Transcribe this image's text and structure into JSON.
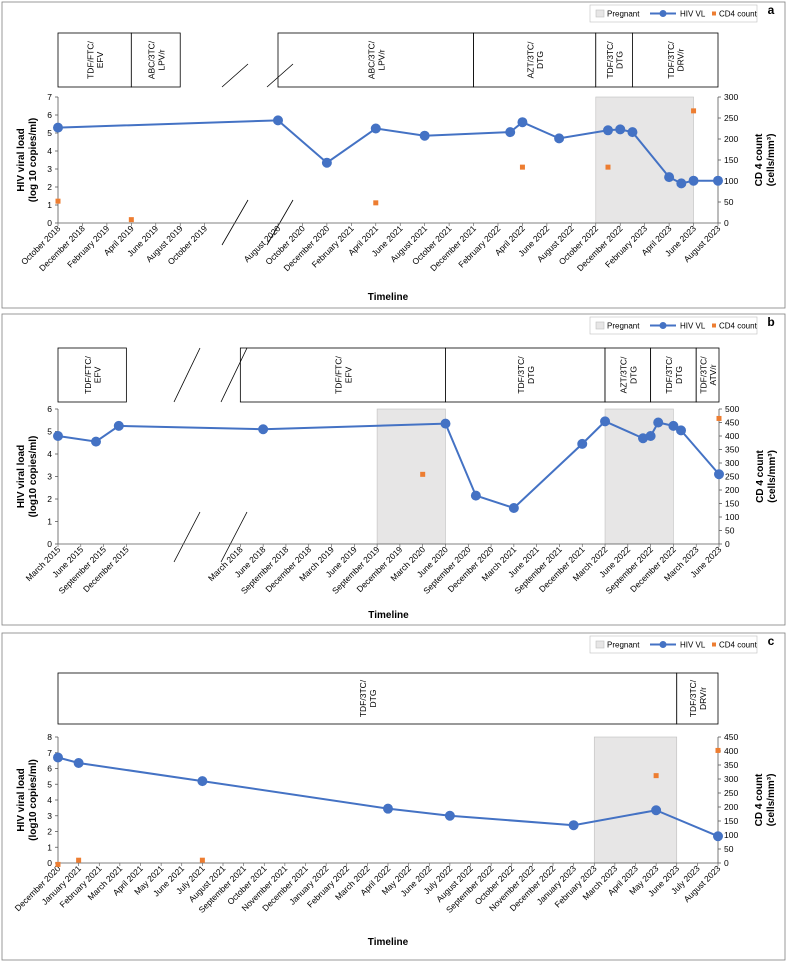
{
  "legend": {
    "pregnant": "Pregnant",
    "vl": "HIV VL",
    "cd4": "CD4 count"
  },
  "colors": {
    "vl": "#4472c4",
    "cd4": "#ed7d31",
    "pregnant_fill": "#e7e6e6",
    "pregnant_stroke": "#bfbfbf"
  },
  "chart_data": [
    {
      "panel": "a",
      "type": "line",
      "xlabel": "Timeline",
      "ylabel_left": [
        "HIV viral load",
        "(log 10 copies/ml)"
      ],
      "ylabel_right": [
        "CD 4 count",
        "(cells/mm³)"
      ],
      "ylim_left": [
        0,
        7
      ],
      "yticks_left": [
        0,
        1,
        2,
        3,
        4,
        5,
        6,
        7
      ],
      "ylim_right": [
        0,
        300
      ],
      "yticks_right": [
        0,
        50,
        100,
        150,
        200,
        250,
        300
      ],
      "x_categories": [
        "October 2018",
        "December 2018",
        "February 2019",
        "April 2019",
        "June 2019",
        "August 2019",
        "October 2019",
        "",
        "",
        "August 2020",
        "October 2020",
        "December 2020",
        "February 2021",
        "April 2021",
        "June 2021",
        "August 2021",
        "October 2021",
        "December 2021",
        "February 2022",
        "April 2022",
        "June 2022",
        "August 2022",
        "October 2022",
        "December 2022",
        "February 2023",
        "April 2023",
        "June 2023",
        "August 2023"
      ],
      "axis_break_after": "October 2019",
      "regimens": [
        {
          "label": [
            "TDF/FTC/",
            "EFV"
          ],
          "from": "October 2018",
          "to": "April 2019"
        },
        {
          "label": [
            "ABC/3TC/",
            "LPV/r"
          ],
          "from": "April 2019",
          "to": "August 2019"
        },
        {
          "label": [
            "ABC/3TC/",
            "LPV/r"
          ],
          "from": "August 2020",
          "to": "December 2021"
        },
        {
          "label": [
            "AZT/3TC/",
            "DTG"
          ],
          "from": "December 2021",
          "to": "October 2022"
        },
        {
          "label": [
            "TDF/3TC/",
            "DTG"
          ],
          "from": "October 2022",
          "to": "January 2023"
        },
        {
          "label": [
            "TDF/3TC/",
            "DRV/r"
          ],
          "from": "January 2023",
          "to": "August 2023"
        }
      ],
      "pregnancy": {
        "from": "October 2022",
        "to": "June 2023"
      },
      "series": [
        {
          "name": "HIV VL",
          "type": "line",
          "points": [
            [
              "October 2018",
              5.3
            ],
            [
              "August 2020",
              5.7
            ],
            [
              "December 2020",
              3.35
            ],
            [
              "April 2021",
              5.25
            ],
            [
              "August 2021",
              4.85
            ],
            [
              "March 2022",
              5.05
            ],
            [
              "April 2022",
              5.6
            ],
            [
              "July 2022",
              4.7
            ],
            [
              "November 2022",
              5.15
            ],
            [
              "December 2022",
              5.2
            ],
            [
              "January 2023",
              5.05
            ],
            [
              "April 2023",
              2.55
            ],
            [
              "May 2023",
              2.2
            ],
            [
              "June 2023",
              2.35
            ],
            [
              "August 2023",
              2.35
            ]
          ]
        },
        {
          "name": "CD4 count",
          "type": "scatter",
          "points": [
            [
              "October 2018",
              52
            ],
            [
              "April 2019",
              8
            ],
            [
              "April 2021",
              48
            ],
            [
              "April 2022",
              133
            ],
            [
              "November 2022",
              133
            ],
            [
              "June 2023",
              267
            ]
          ]
        }
      ]
    },
    {
      "panel": "b",
      "type": "line",
      "xlabel": "Timeline",
      "ylabel_left": [
        "HIV viral load",
        "(log10 copies/ml)"
      ],
      "ylabel_right": [
        "CD 4 count",
        "(cells/mm³)"
      ],
      "ylim_left": [
        0,
        6
      ],
      "yticks_left": [
        0,
        1,
        2,
        3,
        4,
        5,
        6
      ],
      "ylim_right": [
        0,
        500
      ],
      "yticks_right": [
        0,
        50,
        100,
        150,
        200,
        250,
        300,
        350,
        400,
        450,
        500
      ],
      "x_categories": [
        "March 2015",
        "June 2015",
        "September 2015",
        "December 2015",
        "",
        "",
        "",
        "",
        "March 2018",
        "June 2018",
        "September 2018",
        "December 2018",
        "March 2019",
        "June 2019",
        "September 2019",
        "December 2019",
        "March 2020",
        "June 2020",
        "September 2020",
        "December 2020",
        "March 2021",
        "June 2021",
        "September 2021",
        "December 2021",
        "March 2022",
        "June 2022",
        "September 2022",
        "December 2022",
        "March 2023",
        "June 2023"
      ],
      "axis_break_after": "December 2015",
      "regimens": [
        {
          "label": [
            "TDF/FTC/",
            "EFV"
          ],
          "from": "March 2015",
          "to": "December 2015"
        },
        {
          "label": [
            "TDF/FTC/",
            "EFV"
          ],
          "from": "March 2018",
          "to": "June 2020"
        },
        {
          "label": [
            "TDF/3TC/",
            "DTG"
          ],
          "from": "June 2020",
          "to": "March 2022"
        },
        {
          "label": [
            "AZT/3TC/",
            "DTG"
          ],
          "from": "March 2022",
          "to": "September 2022"
        },
        {
          "label": [
            "TDF/3TC/",
            "DTG"
          ],
          "from": "September 2022",
          "to": "March 2023"
        },
        {
          "label": [
            "TDF/3TC/",
            "ATV/r"
          ],
          "from": "March 2023",
          "to": "June 2023"
        }
      ],
      "pregnancy_periods": [
        {
          "from": "September 2019",
          "to": "June 2020"
        },
        {
          "from": "March 2022",
          "to": "December 2022"
        }
      ],
      "series": [
        {
          "name": "HIV VL",
          "type": "line",
          "points": [
            [
              "March 2015",
              4.8
            ],
            [
              "August 2015",
              4.55
            ],
            [
              "November 2015",
              5.25
            ],
            [
              "June 2018",
              5.1
            ],
            [
              "June 2020",
              5.35
            ],
            [
              "October 2020",
              2.15
            ],
            [
              "March 2021",
              1.6
            ],
            [
              "December 2021",
              4.45
            ],
            [
              "March 2022",
              5.45
            ],
            [
              "August 2022",
              4.7
            ],
            [
              "September 2022",
              4.8
            ],
            [
              "October 2022",
              5.4
            ],
            [
              "December 2022",
              5.25
            ],
            [
              "January 2023",
              5.05
            ],
            [
              "June 2023",
              3.1
            ]
          ]
        },
        {
          "name": "CD4 count",
          "type": "scatter",
          "points": [
            [
              "March 2020",
              258
            ],
            [
              "June 2023",
              465
            ]
          ]
        }
      ]
    },
    {
      "panel": "c",
      "type": "line",
      "xlabel": "Timeline",
      "ylabel_left": [
        "HIV viral load",
        "(log10 copies/ml)"
      ],
      "ylabel_right": [
        "CD 4 count",
        "(cells/mm³)"
      ],
      "ylim_left": [
        0,
        8
      ],
      "yticks_left": [
        0,
        1,
        2,
        3,
        4,
        5,
        6,
        7,
        8
      ],
      "ylim_right": [
        0,
        450
      ],
      "yticks_right": [
        0,
        50,
        100,
        150,
        200,
        250,
        300,
        350,
        400,
        450
      ],
      "x_categories": [
        "December 2020",
        "January 2021",
        "February 2021",
        "March 2021",
        "April 2021",
        "May 2021",
        "June 2021",
        "July 2021",
        "August 2021",
        "September 2021",
        "October 2021",
        "November 2021",
        "December 2021",
        "January 2022",
        "February 2022",
        "March 2022",
        "April 2022",
        "May 2022",
        "June 2022",
        "July 2022",
        "August 2022",
        "September 2022",
        "October 2022",
        "November 2022",
        "December 2022",
        "January 2023",
        "February 2023",
        "March 2023",
        "April 2023",
        "May 2023",
        "June 2023",
        "July 2023",
        "August 2023"
      ],
      "regimens": [
        {
          "label": [
            "TDF/3TC/",
            "DTG"
          ],
          "from": "December 2020",
          "to": "June 2023"
        },
        {
          "label": [
            "TDF/3TC/",
            "DRV/r"
          ],
          "from": "June 2023",
          "to": "August 2023"
        }
      ],
      "pregnancy": {
        "from": "February 2023",
        "to": "June 2023"
      },
      "series": [
        {
          "name": "HIV VL",
          "type": "line",
          "points": [
            [
              "December 2020",
              6.7
            ],
            [
              "January 2021",
              6.35
            ],
            [
              "July 2021",
              5.2
            ],
            [
              "April 2022",
              3.45
            ],
            [
              "July 2022",
              3.0
            ],
            [
              "January 2023",
              2.4
            ],
            [
              "May 2023",
              3.35
            ],
            [
              "August 2023",
              1.7
            ]
          ]
        },
        {
          "name": "CD4 count",
          "type": "scatter",
          "points": [
            [
              "December 2020",
              -5
            ],
            [
              "January 2021",
              10
            ],
            [
              "July 2021",
              10
            ],
            [
              "May 2023",
              312
            ],
            [
              "August 2023",
              402
            ]
          ]
        }
      ]
    }
  ]
}
